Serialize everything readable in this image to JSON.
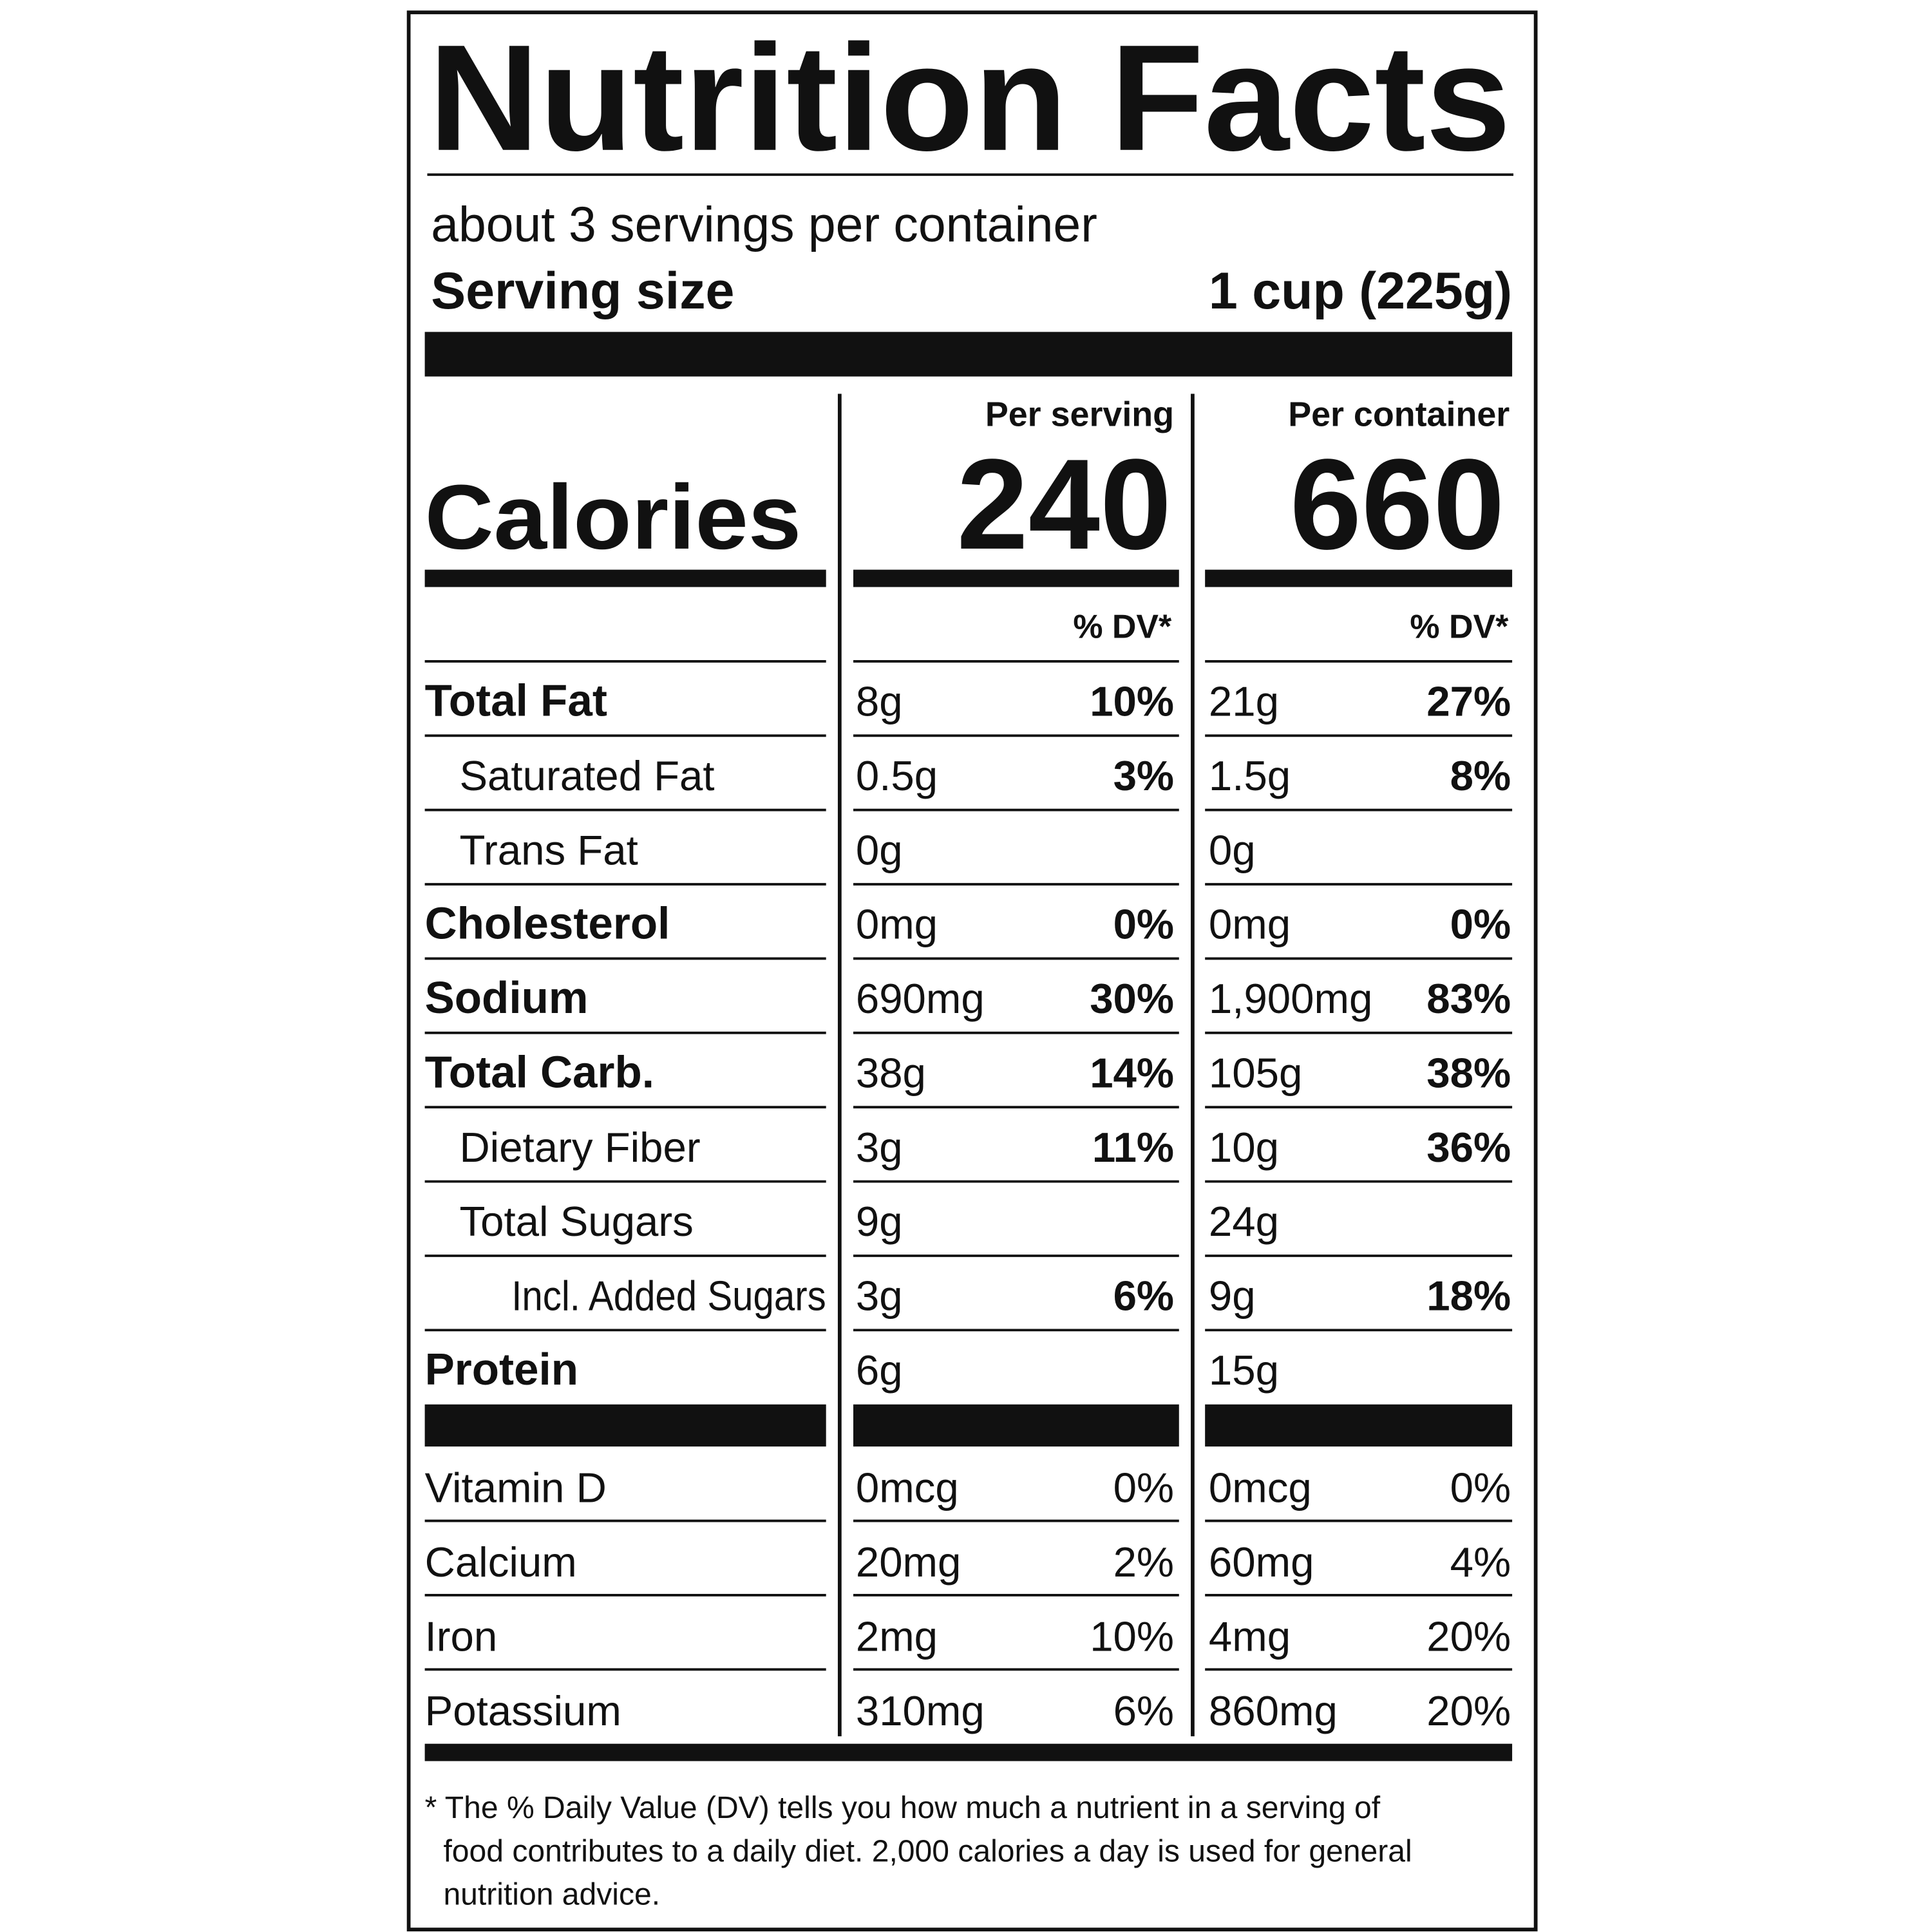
{
  "title": "Nutrition Facts",
  "servings_per_container": "about 3 servings per container",
  "serving_size": {
    "label": "Serving size",
    "value": "1 cup (225g)"
  },
  "columns": [
    "Per serving",
    "Per container"
  ],
  "calories": {
    "label": "Calories",
    "values": [
      "240",
      "660"
    ]
  },
  "dv_header": [
    "% DV*",
    "% DV*"
  ],
  "nutrients": [
    {
      "name": "Total Fat",
      "serving": [
        "8g",
        "10%"
      ],
      "container": [
        "21g",
        "27%"
      ]
    },
    {
      "name": "Saturated Fat",
      "serving": [
        "0.5g",
        "3%"
      ],
      "container": [
        "1.5g",
        "8%"
      ]
    },
    {
      "name": "Trans Fat",
      "serving": [
        "0g"
      ],
      "container": [
        "0g"
      ]
    },
    {
      "name": "Cholesterol",
      "serving": [
        "0mg",
        "0%"
      ],
      "container": [
        "0mg",
        "0%"
      ]
    },
    {
      "name": "Sodium",
      "serving": [
        "690mg",
        "30%"
      ],
      "container": [
        "1,900mg",
        "83%"
      ]
    },
    {
      "name": "Total Carb.",
      "serving": [
        "38g",
        "14%"
      ],
      "container": [
        "105g",
        "38%"
      ]
    },
    {
      "name": "Dietary Fiber",
      "serving": [
        "3g",
        "11%"
      ],
      "container": [
        "10g",
        "36%"
      ]
    },
    {
      "name": "Total Sugars",
      "serving": [
        "9g"
      ],
      "container": [
        "24g"
      ]
    },
    {
      "name": "Incl. Added Sugars",
      "serving": [
        "3g",
        "6%"
      ],
      "container": [
        "9g",
        "18%"
      ]
    },
    {
      "name": "Protein",
      "serving": [
        "6g"
      ],
      "container": [
        "15g"
      ]
    }
  ],
  "vitamins": [
    {
      "name": "Vitamin D",
      "serving": [
        "0mcg",
        "0%"
      ],
      "container": [
        "0mcg",
        "0%"
      ]
    },
    {
      "name": "Calcium",
      "serving": [
        "20mg",
        "2%"
      ],
      "container": [
        "60mg",
        "4%"
      ]
    },
    {
      "name": "Iron",
      "serving": [
        "2mg",
        "10%"
      ],
      "container": [
        "4mg",
        "20%"
      ]
    },
    {
      "name": "Potassium",
      "serving": [
        "310mg",
        "6%"
      ],
      "container": [
        "860mg",
        "20%"
      ]
    }
  ],
  "footnote": [
    "* The % Daily Value (DV) tells you how much a nutrient in a serving of",
    "food contributes to a daily diet. 2,000 calories a day is used for general",
    "nutrition advice."
  ]
}
